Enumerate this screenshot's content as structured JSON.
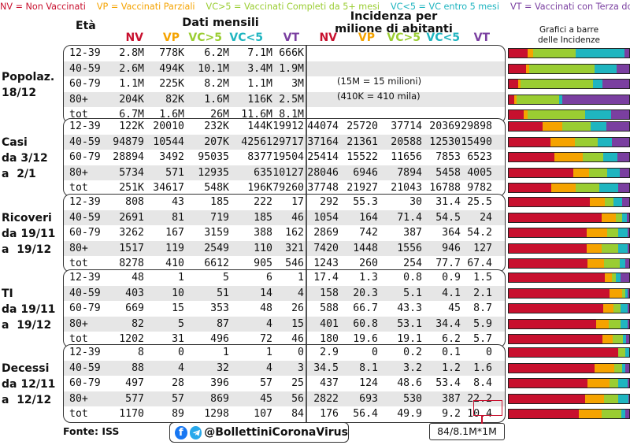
{
  "legend": [
    {
      "text": "NV = Non Vaccinati",
      "color": "#c8102e"
    },
    {
      "text": "VP = Vaccinati Parziali",
      "color": "#f5a300"
    },
    {
      "text": "VC>5 = Vaccinati Completi da 5+ mesi",
      "color": "#9acd32"
    },
    {
      "text": "VC<5 = VC entro 5 mesi",
      "color": "#1fb5c0"
    },
    {
      "text": "VT = Vaccinati con Terza dose",
      "color": "#7a3fa0"
    }
  ],
  "headers": {
    "eta": "Età",
    "dati_mensili": "Dati mensili",
    "incidenza_line1": "Incidenza per",
    "incidenza_line2": "milione di abitanti",
    "grafici_line1": "Grafici a barre",
    "grafici_line2": "delle Incidenze",
    "cols": [
      "NV",
      "VP",
      "VC>5",
      "VC<5",
      "VT"
    ]
  },
  "colors": {
    "NV": "#c8102e",
    "VP": "#f5a300",
    "VC5p": "#9acd32",
    "VC5m": "#1fb5c0",
    "VT": "#7a3fa0"
  },
  "notes": [
    "(15M = 15 milioni)",
    "(410K = 410 mila)"
  ],
  "groups": [
    {
      "label_lines": [
        "Popolaz.",
        "18/12"
      ],
      "rows": [
        {
          "age": "12-39",
          "dati": [
            "2.8M",
            "778K",
            "6.2M",
            "7.1M",
            "666K"
          ],
          "inc": [
            "",
            "",
            "",
            "",
            ""
          ]
        },
        {
          "age": "40-59",
          "dati": [
            "2.6M",
            "494K",
            "10.1M",
            "3.4M",
            "1.9M"
          ],
          "inc": [
            "",
            "",
            "",
            "",
            ""
          ]
        },
        {
          "age": "60-79",
          "dati": [
            "1.1M",
            "225K",
            "8.2M",
            "1.1M",
            "3M"
          ],
          "inc": [
            "",
            "",
            "",
            "",
            ""
          ]
        },
        {
          "age": "80+",
          "dati": [
            "204K",
            "82K",
            "1.6M",
            "116K",
            "2.5M"
          ],
          "inc": [
            "",
            "",
            "",
            "",
            ""
          ]
        },
        {
          "age": "tot",
          "dati": [
            "6.7M",
            "1.6M",
            "26M",
            "11.6M",
            "8.1M"
          ],
          "inc": [
            "",
            "",
            "",
            "",
            ""
          ]
        }
      ],
      "bars": [
        [
          2.8,
          0.78,
          6.2,
          7.1,
          0.67
        ],
        [
          2.6,
          0.49,
          10.1,
          3.4,
          1.9
        ],
        [
          1.1,
          0.23,
          8.2,
          1.1,
          3
        ],
        [
          0.2,
          0.08,
          1.6,
          0.12,
          2.5
        ],
        [
          6.7,
          1.6,
          26,
          11.6,
          8.1
        ]
      ]
    },
    {
      "label_lines": [
        "Casi",
        "da 3/12",
        "a  2/1"
      ],
      "rows": [
        {
          "age": "12-39",
          "dati": [
            "122K",
            "20010",
            "232K",
            "144K",
            "19912"
          ],
          "inc": [
            "44074",
            "25720",
            "37714",
            "20369",
            "29898"
          ]
        },
        {
          "age": "40-59",
          "dati": [
            "94879",
            "10544",
            "207K",
            "42561",
            "29717"
          ],
          "inc": [
            "37164",
            "21361",
            "20588",
            "12530",
            "15490"
          ]
        },
        {
          "age": "60-79",
          "dati": [
            "28894",
            "3492",
            "95035",
            "8377",
            "19504"
          ],
          "inc": [
            "25414",
            "15522",
            "11656",
            "7853",
            "6523"
          ]
        },
        {
          "age": "80+",
          "dati": [
            "5734",
            "571",
            "12935",
            "635",
            "10127"
          ],
          "inc": [
            "28046",
            "6946",
            "7894",
            "5458",
            "4005"
          ]
        },
        {
          "age": "tot",
          "dati": [
            "251K",
            "34617",
            "548K",
            "196K",
            "79260"
          ],
          "inc": [
            "37748",
            "21927",
            "21043",
            "16788",
            "9782"
          ]
        }
      ]
    },
    {
      "label_lines": [
        "Ricoveri",
        "da 19/11",
        "a  19/12"
      ],
      "rows": [
        {
          "age": "12-39",
          "dati": [
            "808",
            "43",
            "185",
            "222",
            "17"
          ],
          "inc": [
            "292",
            "55.3",
            "30",
            "31.4",
            "25.5"
          ]
        },
        {
          "age": "40-59",
          "dati": [
            "2691",
            "81",
            "719",
            "185",
            "46"
          ],
          "inc": [
            "1054",
            "164",
            "71.4",
            "54.5",
            "24"
          ]
        },
        {
          "age": "60-79",
          "dati": [
            "3262",
            "167",
            "3159",
            "388",
            "162"
          ],
          "inc": [
            "2869",
            "742",
            "387",
            "364",
            "54.2"
          ]
        },
        {
          "age": "80+",
          "dati": [
            "1517",
            "119",
            "2549",
            "110",
            "321"
          ],
          "inc": [
            "7420",
            "1448",
            "1556",
            "946",
            "127"
          ]
        },
        {
          "age": "tot",
          "dati": [
            "8278",
            "410",
            "6612",
            "905",
            "546"
          ],
          "inc": [
            "1243",
            "260",
            "254",
            "77.7",
            "67.4"
          ]
        }
      ]
    },
    {
      "label_lines": [
        "TI",
        "da 19/11",
        "a  19/12"
      ],
      "rows": [
        {
          "age": "12-39",
          "dati": [
            "48",
            "1",
            "5",
            "6",
            "1"
          ],
          "inc": [
            "17.4",
            "1.3",
            "0.8",
            "0.9",
            "1.5"
          ]
        },
        {
          "age": "40-59",
          "dati": [
            "403",
            "10",
            "51",
            "14",
            "4"
          ],
          "inc": [
            "158",
            "20.3",
            "5.1",
            "4.1",
            "2.1"
          ]
        },
        {
          "age": "60-79",
          "dati": [
            "669",
            "15",
            "353",
            "48",
            "26"
          ],
          "inc": [
            "588",
            "66.7",
            "43.3",
            "45",
            "8.7"
          ]
        },
        {
          "age": "80+",
          "dati": [
            "82",
            "5",
            "87",
            "4",
            "15"
          ],
          "inc": [
            "401",
            "60.8",
            "53.1",
            "34.4",
            "5.9"
          ]
        },
        {
          "age": "tot",
          "dati": [
            "1202",
            "31",
            "496",
            "72",
            "46"
          ],
          "inc": [
            "180",
            "19.6",
            "19.1",
            "6.2",
            "5.7"
          ]
        }
      ]
    },
    {
      "label_lines": [
        "Decessi",
        "da 12/11",
        "a  12/12"
      ],
      "rows": [
        {
          "age": "12-39",
          "dati": [
            "8",
            "0",
            "1",
            "1",
            "0"
          ],
          "inc": [
            "2.9",
            "0",
            "0.2",
            "0.1",
            "0"
          ]
        },
        {
          "age": "40-59",
          "dati": [
            "88",
            "4",
            "32",
            "4",
            "3"
          ],
          "inc": [
            "34.5",
            "8.1",
            "3.2",
            "1.2",
            "1.6"
          ]
        },
        {
          "age": "60-79",
          "dati": [
            "497",
            "28",
            "396",
            "57",
            "25"
          ],
          "inc": [
            "437",
            "124",
            "48.6",
            "53.4",
            "8.4"
          ]
        },
        {
          "age": "80+",
          "dati": [
            "577",
            "57",
            "869",
            "45",
            "56"
          ],
          "inc": [
            "2822",
            "693",
            "530",
            "387",
            "22.2"
          ]
        },
        {
          "age": "tot",
          "dati": [
            "1170",
            "89",
            "1298",
            "107",
            "84"
          ],
          "inc": [
            "176",
            "56.4",
            "49.9",
            "9.2",
            "10.4"
          ]
        }
      ]
    }
  ],
  "footer": {
    "fonte": "Fonte: ISS",
    "handle": "@BollettiniCoronaVirus",
    "formula": "84/8.1M*1M"
  }
}
